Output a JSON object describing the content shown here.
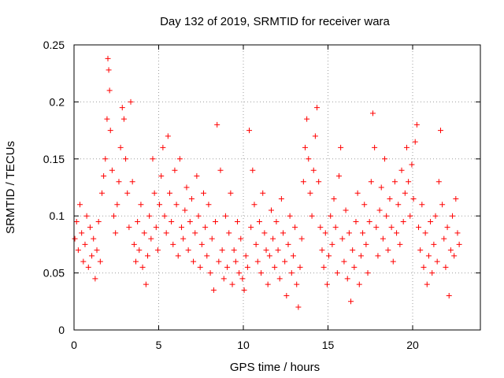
{
  "chart_data": {
    "type": "scatter",
    "title": "Day 132 of 2019, SRMTID for receiver wara",
    "xlabel": "GPS time / hours",
    "ylabel": "SRMTID / TECUs",
    "xlim": [
      0,
      24
    ],
    "ylim": [
      0,
      0.25
    ],
    "x_ticks": [
      0,
      5,
      10,
      15,
      20
    ],
    "x_tick_labels": [
      "0",
      "5",
      "10",
      "15",
      "20"
    ],
    "y_ticks": [
      0,
      0.05,
      0.1,
      0.15,
      0.2,
      0.25
    ],
    "y_tick_labels": [
      "0",
      "0.05",
      "0.1",
      "0.15",
      "0.2",
      "0.25"
    ],
    "grid": true,
    "marker": "+",
    "series": [
      {
        "name": "wara",
        "color": "#ff0000",
        "points": [
          [
            0.05,
            0.08
          ],
          [
            0.15,
            0.095
          ],
          [
            0.25,
            0.07
          ],
          [
            0.35,
            0.11
          ],
          [
            0.45,
            0.085
          ],
          [
            0.55,
            0.06
          ],
          [
            0.65,
            0.075
          ],
          [
            0.75,
            0.1
          ],
          [
            0.85,
            0.055
          ],
          [
            0.95,
            0.09
          ],
          [
            1.05,
            0.065
          ],
          [
            1.15,
            0.08
          ],
          [
            1.25,
            0.045
          ],
          [
            1.35,
            0.07
          ],
          [
            1.45,
            0.095
          ],
          [
            1.55,
            0.06
          ],
          [
            1.65,
            0.12
          ],
          [
            1.75,
            0.135
          ],
          [
            1.85,
            0.15
          ],
          [
            1.95,
            0.185
          ],
          [
            2.0,
            0.238
          ],
          [
            2.05,
            0.228
          ],
          [
            2.1,
            0.21
          ],
          [
            2.15,
            0.175
          ],
          [
            2.25,
            0.14
          ],
          [
            2.35,
            0.1
          ],
          [
            2.45,
            0.085
          ],
          [
            2.55,
            0.11
          ],
          [
            2.65,
            0.13
          ],
          [
            2.75,
            0.16
          ],
          [
            2.85,
            0.195
          ],
          [
            2.95,
            0.185
          ],
          [
            3.05,
            0.15
          ],
          [
            3.15,
            0.12
          ],
          [
            3.25,
            0.09
          ],
          [
            3.35,
            0.2
          ],
          [
            3.45,
            0.13
          ],
          [
            3.55,
            0.075
          ],
          [
            3.65,
            0.06
          ],
          [
            3.75,
            0.095
          ],
          [
            3.85,
            0.07
          ],
          [
            3.95,
            0.11
          ],
          [
            4.05,
            0.055
          ],
          [
            4.15,
            0.085
          ],
          [
            4.25,
            0.04
          ],
          [
            4.35,
            0.065
          ],
          [
            4.45,
            0.1
          ],
          [
            4.55,
            0.08
          ],
          [
            4.65,
            0.15
          ],
          [
            4.75,
            0.12
          ],
          [
            4.85,
            0.09
          ],
          [
            4.95,
            0.07
          ],
          [
            5.05,
            0.11
          ],
          [
            5.15,
            0.135
          ],
          [
            5.25,
            0.16
          ],
          [
            5.35,
            0.1
          ],
          [
            5.45,
            0.085
          ],
          [
            5.55,
            0.17
          ],
          [
            5.65,
            0.12
          ],
          [
            5.75,
            0.095
          ],
          [
            5.85,
            0.075
          ],
          [
            5.95,
            0.14
          ],
          [
            6.05,
            0.11
          ],
          [
            6.15,
            0.065
          ],
          [
            6.25,
            0.15
          ],
          [
            6.35,
            0.09
          ],
          [
            6.45,
            0.08
          ],
          [
            6.55,
            0.105
          ],
          [
            6.65,
            0.125
          ],
          [
            6.75,
            0.07
          ],
          [
            6.85,
            0.095
          ],
          [
            6.95,
            0.115
          ],
          [
            7.05,
            0.06
          ],
          [
            7.15,
            0.085
          ],
          [
            7.25,
            0.135
          ],
          [
            7.35,
            0.1
          ],
          [
            7.45,
            0.055
          ],
          [
            7.55,
            0.075
          ],
          [
            7.65,
            0.12
          ],
          [
            7.75,
            0.09
          ],
          [
            7.85,
            0.065
          ],
          [
            7.95,
            0.11
          ],
          [
            8.05,
            0.05
          ],
          [
            8.15,
            0.08
          ],
          [
            8.25,
            0.035
          ],
          [
            8.35,
            0.095
          ],
          [
            8.45,
            0.18
          ],
          [
            8.55,
            0.06
          ],
          [
            8.65,
            0.14
          ],
          [
            8.75,
            0.07
          ],
          [
            8.85,
            0.045
          ],
          [
            8.95,
            0.1
          ],
          [
            9.05,
            0.055
          ],
          [
            9.15,
            0.085
          ],
          [
            9.25,
            0.12
          ],
          [
            9.35,
            0.04
          ],
          [
            9.45,
            0.07
          ],
          [
            9.55,
            0.06
          ],
          [
            9.65,
            0.095
          ],
          [
            9.75,
            0.05
          ],
          [
            9.85,
            0.08
          ],
          [
            9.95,
            0.045
          ],
          [
            10.05,
            0.035
          ],
          [
            10.15,
            0.065
          ],
          [
            10.25,
            0.055
          ],
          [
            10.35,
            0.175
          ],
          [
            10.45,
            0.09
          ],
          [
            10.55,
            0.14
          ],
          [
            10.65,
            0.11
          ],
          [
            10.75,
            0.075
          ],
          [
            10.85,
            0.06
          ],
          [
            10.95,
            0.095
          ],
          [
            11.05,
            0.05
          ],
          [
            11.15,
            0.12
          ],
          [
            11.25,
            0.085
          ],
          [
            11.35,
            0.07
          ],
          [
            11.45,
            0.04
          ],
          [
            11.55,
            0.065
          ],
          [
            11.65,
            0.105
          ],
          [
            11.75,
            0.08
          ],
          [
            11.85,
            0.055
          ],
          [
            11.95,
            0.095
          ],
          [
            12.05,
            0.07
          ],
          [
            12.15,
            0.045
          ],
          [
            12.25,
            0.115
          ],
          [
            12.35,
            0.085
          ],
          [
            12.45,
            0.06
          ],
          [
            12.55,
            0.03
          ],
          [
            12.65,
            0.075
          ],
          [
            12.75,
            0.1
          ],
          [
            12.85,
            0.05
          ],
          [
            12.95,
            0.065
          ],
          [
            13.05,
            0.09
          ],
          [
            13.15,
            0.04
          ],
          [
            13.25,
            0.02
          ],
          [
            13.35,
            0.055
          ],
          [
            13.45,
            0.08
          ],
          [
            13.55,
            0.13
          ],
          [
            13.65,
            0.16
          ],
          [
            13.75,
            0.185
          ],
          [
            13.85,
            0.15
          ],
          [
            13.95,
            0.12
          ],
          [
            14.05,
            0.1
          ],
          [
            14.15,
            0.14
          ],
          [
            14.25,
            0.17
          ],
          [
            14.35,
            0.195
          ],
          [
            14.45,
            0.13
          ],
          [
            14.55,
            0.09
          ],
          [
            14.65,
            0.07
          ],
          [
            14.75,
            0.055
          ],
          [
            14.85,
            0.085
          ],
          [
            14.95,
            0.04
          ],
          [
            15.05,
            0.065
          ],
          [
            15.15,
            0.1
          ],
          [
            15.25,
            0.075
          ],
          [
            15.35,
            0.115
          ],
          [
            15.45,
            0.09
          ],
          [
            15.55,
            0.05
          ],
          [
            15.65,
            0.135
          ],
          [
            15.75,
            0.16
          ],
          [
            15.85,
            0.08
          ],
          [
            15.95,
            0.06
          ],
          [
            16.05,
            0.105
          ],
          [
            16.15,
            0.045
          ],
          [
            16.25,
            0.085
          ],
          [
            16.35,
            0.025
          ],
          [
            16.45,
            0.07
          ],
          [
            16.55,
            0.055
          ],
          [
            16.65,
            0.095
          ],
          [
            16.75,
            0.12
          ],
          [
            16.85,
            0.04
          ],
          [
            16.95,
            0.065
          ],
          [
            17.05,
            0.085
          ],
          [
            17.15,
            0.11
          ],
          [
            17.25,
            0.075
          ],
          [
            17.35,
            0.05
          ],
          [
            17.45,
            0.095
          ],
          [
            17.55,
            0.13
          ],
          [
            17.65,
            0.19
          ],
          [
            17.75,
            0.16
          ],
          [
            17.85,
            0.09
          ],
          [
            17.95,
            0.065
          ],
          [
            18.05,
            0.105
          ],
          [
            18.15,
            0.125
          ],
          [
            18.25,
            0.08
          ],
          [
            18.35,
            0.15
          ],
          [
            18.45,
            0.1
          ],
          [
            18.55,
            0.07
          ],
          [
            18.65,
            0.115
          ],
          [
            18.75,
            0.09
          ],
          [
            18.85,
            0.06
          ],
          [
            18.95,
            0.13
          ],
          [
            19.05,
            0.085
          ],
          [
            19.15,
            0.11
          ],
          [
            19.25,
            0.075
          ],
          [
            19.35,
            0.14
          ],
          [
            19.45,
            0.095
          ],
          [
            19.55,
            0.12
          ],
          [
            19.65,
            0.16
          ],
          [
            19.75,
            0.13
          ],
          [
            19.85,
            0.1
          ],
          [
            19.95,
            0.145
          ],
          [
            20.05,
            0.115
          ],
          [
            20.15,
            0.165
          ],
          [
            20.25,
            0.18
          ],
          [
            20.35,
            0.09
          ],
          [
            20.45,
            0.07
          ],
          [
            20.55,
            0.11
          ],
          [
            20.65,
            0.055
          ],
          [
            20.75,
            0.085
          ],
          [
            20.85,
            0.04
          ],
          [
            20.95,
            0.065
          ],
          [
            21.05,
            0.095
          ],
          [
            21.15,
            0.05
          ],
          [
            21.25,
            0.075
          ],
          [
            21.35,
            0.1
          ],
          [
            21.45,
            0.06
          ],
          [
            21.55,
            0.13
          ],
          [
            21.65,
            0.175
          ],
          [
            21.75,
            0.11
          ],
          [
            21.85,
            0.08
          ],
          [
            21.95,
            0.055
          ],
          [
            22.05,
            0.09
          ],
          [
            22.15,
            0.03
          ],
          [
            22.25,
            0.07
          ],
          [
            22.35,
            0.1
          ],
          [
            22.45,
            0.065
          ],
          [
            22.55,
            0.115
          ],
          [
            22.65,
            0.085
          ],
          [
            22.75,
            0.075
          ]
        ]
      }
    ]
  }
}
